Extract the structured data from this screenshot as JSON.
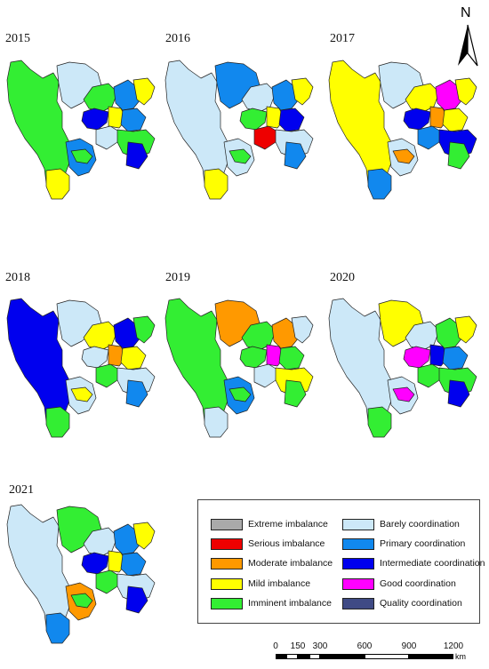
{
  "panels": [
    {
      "year": "2015",
      "colors": [
        "#33ee33",
        "#cce8f8",
        "#33ee33",
        "#1188ee",
        "#ffff00",
        "#0000ee",
        "#ffff00",
        "#1188ee",
        "#cce8f8",
        "#33ee33",
        "#0000ee",
        "#1188ee",
        "#ffff00",
        "#33ee33"
      ]
    },
    {
      "year": "2016",
      "colors": [
        "#cce8f8",
        "#1188ee",
        "#cce8f8",
        "#1188ee",
        "#ffff00",
        "#33ee33",
        "#ffff00",
        "#0000ee",
        "#ee0000",
        "#cce8f8",
        "#1188ee",
        "#cce8f8",
        "#ffff00",
        "#33ee33"
      ]
    },
    {
      "year": "2017",
      "colors": [
        "#ffff00",
        "#cce8f8",
        "#ffff00",
        "#ff00ff",
        "#ffff00",
        "#0000ee",
        "#ff9900",
        "#ffff00",
        "#1188ee",
        "#0000ee",
        "#33ee33",
        "#cce8f8",
        "#1188ee",
        "#ff9900"
      ]
    },
    {
      "year": "2018",
      "colors": [
        "#0000ee",
        "#cce8f8",
        "#ffff00",
        "#0000ee",
        "#33ee33",
        "#cce8f8",
        "#ff9900",
        "#ffff00",
        "#33ee33",
        "#cce8f8",
        "#1188ee",
        "#cce8f8",
        "#33ee33",
        "#ffff00"
      ]
    },
    {
      "year": "2019",
      "colors": [
        "#33ee33",
        "#ff9900",
        "#33ee33",
        "#ff9900",
        "#cce8f8",
        "#33ee33",
        "#ff00ff",
        "#33ee33",
        "#cce8f8",
        "#ffff00",
        "#33ee33",
        "#1188ee",
        "#cce8f8",
        "#33ee33"
      ]
    },
    {
      "year": "2020",
      "colors": [
        "#cce8f8",
        "#ffff00",
        "#cce8f8",
        "#33ee33",
        "#ffff00",
        "#ff00ff",
        "#0000ee",
        "#1188ee",
        "#33ee33",
        "#33ee33",
        "#0000ee",
        "#cce8f8",
        "#33ee33",
        "#ff00ff"
      ]
    },
    {
      "year": "2021",
      "colors": [
        "#cce8f8",
        "#33ee33",
        "#cce8f8",
        "#1188ee",
        "#ffff00",
        "#0000ee",
        "#ffff00",
        "#1188ee",
        "#33ee33",
        "#cce8f8",
        "#0000ee",
        "#ff9900",
        "#1188ee",
        "#33ee33"
      ]
    }
  ],
  "legend": [
    {
      "label": "Extreme imbalance",
      "color": "#aaaaaa"
    },
    {
      "label": "Serious imbalance",
      "color": "#ee0000"
    },
    {
      "label": "Moderate imbalance",
      "color": "#ff9900"
    },
    {
      "label": "Mild imbalance",
      "color": "#ffff00"
    },
    {
      "label": "Imminent imbalance",
      "color": "#33ee33"
    },
    {
      "label": "Barely coordination",
      "color": "#cce8f8"
    },
    {
      "label": "Primary coordination",
      "color": "#1188ee"
    },
    {
      "label": "Intermediate coordination",
      "color": "#0000ee"
    },
    {
      "label": "Good coordination",
      "color": "#ff00ff"
    },
    {
      "label": "Quality coordination",
      "color": "#3f4a85"
    }
  ],
  "north": {
    "label": "N",
    "icon": "north-arrow-icon"
  },
  "scale": {
    "ticks": [
      "0",
      "150",
      "300",
      "600",
      "900",
      "1200"
    ],
    "unit": "km"
  }
}
